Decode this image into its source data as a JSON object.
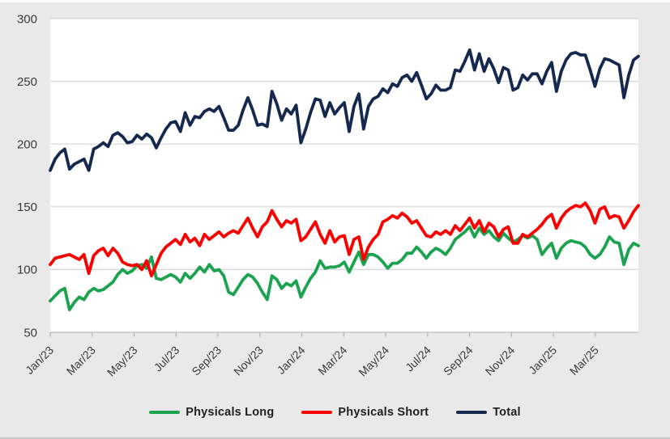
{
  "chart": {
    "background_color": "#e9e9e9",
    "plot_background_color": "#ffffff",
    "grid_color": "#d6d6d6",
    "axis_line_color": "#bfbfbf",
    "tick_color": "#b3b3b3",
    "label_color": "#3a3a3a"
  },
  "chart_data": {
    "type": "line",
    "title": "",
    "xlabel": "",
    "ylabel": "",
    "ylim": [
      50,
      300
    ],
    "y_ticks": [
      50,
      100,
      150,
      200,
      250,
      300
    ],
    "grid": "horizontal",
    "legend_position": "bottom",
    "frequency": "weekly",
    "x_tick_labels": [
      "Jan/23",
      "Mar/23",
      "May/23",
      "Jul/23",
      "Sep/23",
      "Nov/23",
      "Jan/24",
      "Mar/24",
      "May/24",
      "Jul/24",
      "Sep/24",
      "Nov/24",
      "Jan/25",
      "Mar/25"
    ],
    "series": [
      {
        "name": "Physicals Long",
        "color": "#1ca350",
        "values": [
          75,
          79,
          83,
          85,
          68,
          74,
          78,
          76,
          82,
          85,
          83,
          84,
          87,
          90,
          96,
          100,
          97,
          99,
          103,
          104,
          101,
          110,
          93,
          92,
          94,
          96,
          94,
          90,
          97,
          93,
          97,
          102,
          98,
          104,
          99,
          100,
          95,
          82,
          80,
          86,
          92,
          96,
          94,
          89,
          82,
          76,
          95,
          92,
          85,
          89,
          87,
          91,
          78,
          86,
          93,
          98,
          107,
          101,
          102,
          102,
          103,
          106,
          98,
          106,
          114,
          104,
          112,
          112,
          110,
          106,
          101,
          105,
          105,
          108,
          113,
          113,
          118,
          114,
          109,
          114,
          117,
          115,
          112,
          117,
          124,
          127,
          130,
          134,
          126,
          133,
          128,
          131,
          126,
          123,
          129,
          125,
          122,
          124,
          127,
          125,
          127,
          124,
          112,
          117,
          121,
          109,
          117,
          121,
          123,
          122,
          121,
          118,
          112,
          109,
          112,
          118,
          126,
          122,
          121,
          104,
          116,
          121,
          119
        ]
      },
      {
        "name": "Physicals Short",
        "color": "#fb0000",
        "values": [
          104,
          109,
          110,
          111,
          112,
          110,
          108,
          112,
          97,
          111,
          115,
          117,
          111,
          117,
          113,
          106,
          104,
          103,
          104,
          100,
          107,
          95,
          104,
          113,
          118,
          121,
          124,
          120,
          128,
          122,
          125,
          119,
          128,
          124,
          127,
          130,
          126,
          129,
          131,
          129,
          135,
          141,
          133,
          126,
          134,
          138,
          147,
          140,
          134,
          139,
          137,
          140,
          123,
          126,
          132,
          138,
          128,
          121,
          131,
          122,
          126,
          127,
          112,
          124,
          126,
          108,
          118,
          124,
          128,
          138,
          140,
          143,
          141,
          145,
          142,
          137,
          139,
          133,
          127,
          126,
          130,
          128,
          131,
          128,
          135,
          131,
          136,
          141,
          133,
          139,
          130,
          137,
          134,
          126,
          132,
          134,
          121,
          121,
          128,
          126,
          129,
          132,
          136,
          141,
          144,
          133,
          141,
          146,
          149,
          151,
          150,
          153,
          147,
          137,
          148,
          150,
          141,
          143,
          142,
          133,
          139,
          146,
          151
        ]
      },
      {
        "name": "Total",
        "color": "#15294f",
        "values": [
          179,
          188,
          193,
          196,
          180,
          184,
          186,
          188,
          179,
          196,
          198,
          201,
          198,
          207,
          209,
          206,
          201,
          202,
          207,
          204,
          208,
          205,
          197,
          205,
          212,
          217,
          218,
          210,
          225,
          215,
          222,
          221,
          226,
          228,
          226,
          230,
          221,
          211,
          211,
          215,
          227,
          237,
          227,
          215,
          216,
          214,
          242,
          232,
          219,
          228,
          224,
          231,
          201,
          212,
          225,
          236,
          235,
          222,
          233,
          224,
          229,
          233,
          210,
          230,
          240,
          212,
          230,
          236,
          238,
          244,
          241,
          248,
          246,
          253,
          255,
          250,
          257,
          247,
          236,
          240,
          247,
          243,
          243,
          245,
          259,
          258,
          266,
          275,
          259,
          272,
          258,
          268,
          260,
          249,
          261,
          259,
          243,
          245,
          255,
          251,
          256,
          256,
          248,
          258,
          265,
          242,
          258,
          267,
          272,
          273,
          271,
          271,
          259,
          246,
          260,
          268,
          267,
          265,
          263,
          237,
          255,
          267,
          270
        ]
      }
    ]
  }
}
